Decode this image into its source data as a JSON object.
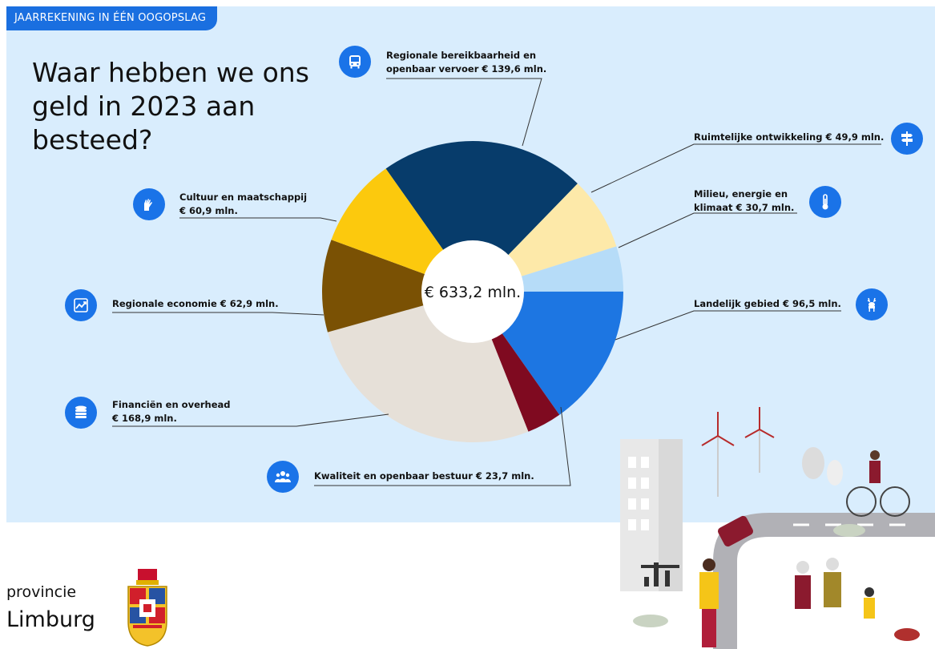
{
  "header": {
    "tag": "JAARREKENING IN ÉÉN OOGOPSLAG",
    "title": "Waar hebben we ons geld in 2023 aan besteed?"
  },
  "logo": {
    "line1": "provincie",
    "line2": "Limburg"
  },
  "colors": {
    "panel": "#d9edfd",
    "accent": "#1a73e8"
  },
  "labels": {
    "transport_l1": "Regionale bereikbaarheid en",
    "transport_l2": "openbaar vervoer € 139,6 mln.",
    "ruimte": "Ruimtelijke ontwikkeling € 49,9 mln.",
    "milieu_l1": "Milieu, energie en",
    "milieu_l2": "klimaat € 30,7 mln.",
    "landelijk": "Landelijk gebied € 96,5 mln.",
    "kwaliteit": "Kwaliteit en openbaar bestuur € 23,7 mln.",
    "financien_l1": "Financiën en overhead",
    "financien_l2": "€ 168,9 mln.",
    "economie": "Regionale economie € 62,9 mln.",
    "cultuur_l1": "Cultuur en maatschappij",
    "cultuur_l2": "€ 60,9 mln."
  },
  "icons": {
    "transport": "bus-icon",
    "ruimte": "signpost-icon",
    "milieu": "thermometer-icon",
    "landelijk": "deer-icon",
    "kwaliteit": "people-icon",
    "financien": "coins-icon",
    "economie": "trend-chart-icon",
    "cultuur": "hands-icon"
  },
  "chart_data": {
    "type": "pie",
    "style": "donut",
    "center_label": "€ 633,2 mln.",
    "unit": "€ mln.",
    "total": 633.2,
    "slices": [
      {
        "name": "Regionale bereikbaarheid en openbaar vervoer",
        "value": 139.6,
        "color": "#073c6b"
      },
      {
        "name": "Ruimtelijke ontwikkeling",
        "value": 49.9,
        "color": "#fde9a9"
      },
      {
        "name": "Milieu, energie en klimaat",
        "value": 30.7,
        "color": "#b6dcf8"
      },
      {
        "name": "Landelijk gebied",
        "value": 96.5,
        "color": "#1d76e2"
      },
      {
        "name": "Kwaliteit en openbaar bestuur",
        "value": 23.7,
        "color": "#7f0a20"
      },
      {
        "name": "Financiën en overhead",
        "value": 168.9,
        "color": "#e6e0d8"
      },
      {
        "name": "Regionale economie",
        "value": 62.9,
        "color": "#7a5104"
      },
      {
        "name": "Cultuur en maatschappij",
        "value": 60.9,
        "color": "#fcc90d"
      }
    ]
  }
}
